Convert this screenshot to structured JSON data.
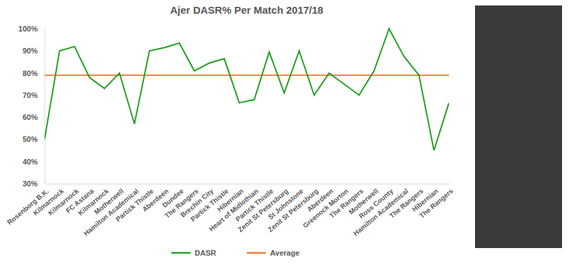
{
  "chart_data": {
    "type": "line",
    "title": "Ajer DASR% Per Match 2017/18",
    "categories": [
      "Rosenborg B.K.",
      "Kilmarnock",
      "Kilmarnock",
      "FC Astana",
      "Kilmarnock",
      "Motherwell",
      "Hamilton Academical",
      "Partick Thistle",
      "Aberdeen",
      "Dundee",
      "The Rangers",
      "Brechin City",
      "Partick Thistle",
      "Hibernian",
      "Heart of Midlothian",
      "Partick Thistle",
      "Zenit St Petersburg",
      "St Johnstone",
      "Zenit St Petersburg",
      "Aberdeen",
      "Greenock Morton",
      "The Rangers",
      "Motherwell",
      "Ross County",
      "Hamilton Academical",
      "The Rangers",
      "Hibernian",
      "The Rangers"
    ],
    "series": [
      {
        "name": "DASR",
        "color": "#1fa11f",
        "values": [
          50,
          90,
          92,
          78,
          73,
          80,
          57,
          90,
          91.5,
          93.5,
          81,
          84.5,
          86.5,
          66.5,
          68,
          89.5,
          71,
          90,
          70,
          80,
          75,
          70,
          81,
          100,
          87.5,
          79,
          45,
          66.5
        ]
      },
      {
        "name": "Average",
        "color": "#ed7d31",
        "values": [
          79,
          79,
          79,
          79,
          79,
          79,
          79,
          79,
          79,
          79,
          79,
          79,
          79,
          79,
          79,
          79,
          79,
          79,
          79,
          79,
          79,
          79,
          79,
          79,
          79,
          79,
          79,
          79
        ]
      }
    ],
    "ylim": [
      30,
      100
    ],
    "yticks": [
      {
        "value": 30,
        "label": "30%"
      },
      {
        "value": 40,
        "label": "40%"
      },
      {
        "value": 50,
        "label": "50%"
      },
      {
        "value": 60,
        "label": "60%"
      },
      {
        "value": 70,
        "label": "70%"
      },
      {
        "value": 80,
        "label": "80%"
      },
      {
        "value": 90,
        "label": "90%"
      },
      {
        "value": 100,
        "label": "100%"
      }
    ],
    "grid": false,
    "legend": "bottom"
  }
}
